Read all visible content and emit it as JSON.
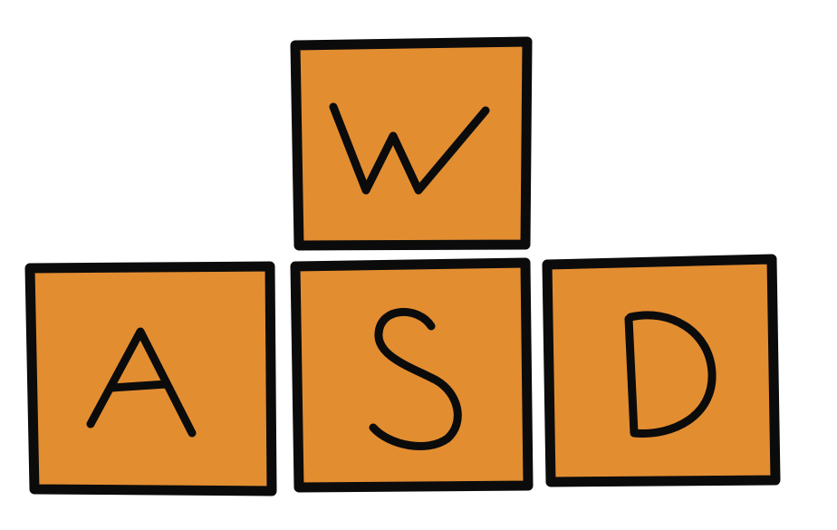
{
  "keys": {
    "w": {
      "label": "W",
      "glyph_icon": "letter-w-handwritten"
    },
    "a": {
      "label": "A",
      "glyph_icon": "letter-a-handwritten"
    },
    "s": {
      "label": "S",
      "glyph_icon": "letter-s-handwritten"
    },
    "d": {
      "label": "D",
      "glyph_icon": "letter-d-handwritten"
    }
  },
  "colors": {
    "key_fill": "#E38D31",
    "outline": "#0B0B0B",
    "background": "#FFFFFF"
  }
}
